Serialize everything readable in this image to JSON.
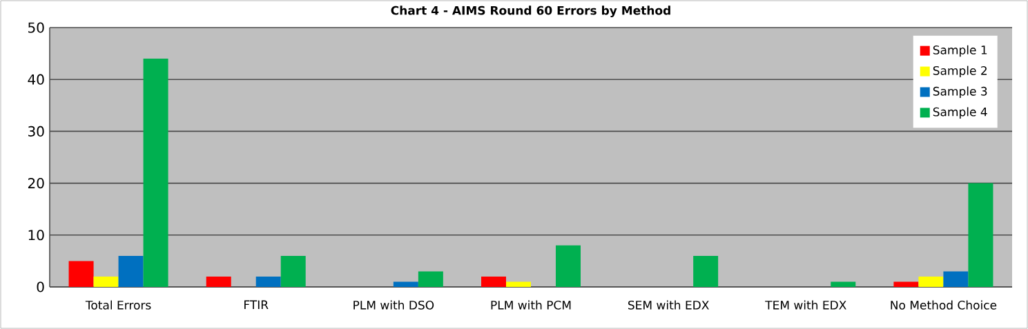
{
  "chart_data": {
    "type": "bar",
    "title": "Chart 4 - AIMS Round 60 Errors by Method",
    "categories": [
      "Total Errors",
      "FTIR",
      "PLM with DSO",
      "PLM with PCM",
      "SEM with EDX",
      "TEM with EDX",
      "No Method Choice"
    ],
    "series": [
      {
        "name": "Sample 1",
        "color": "#ff0000",
        "values": [
          5,
          2,
          0,
          2,
          0,
          0,
          1
        ]
      },
      {
        "name": "Sample 2",
        "color": "#ffff00",
        "values": [
          2,
          0,
          0,
          1,
          0,
          0,
          2
        ]
      },
      {
        "name": "Sample 3",
        "color": "#0070c0",
        "values": [
          6,
          2,
          1,
          0,
          0,
          0,
          3
        ]
      },
      {
        "name": "Sample 4",
        "color": "#00b050",
        "values": [
          44,
          6,
          3,
          8,
          6,
          1,
          20
        ]
      }
    ],
    "ylim": [
      0,
      50
    ],
    "yticks": [
      0,
      10,
      20,
      30,
      40,
      50
    ],
    "grid": "y",
    "legend": "top right"
  }
}
